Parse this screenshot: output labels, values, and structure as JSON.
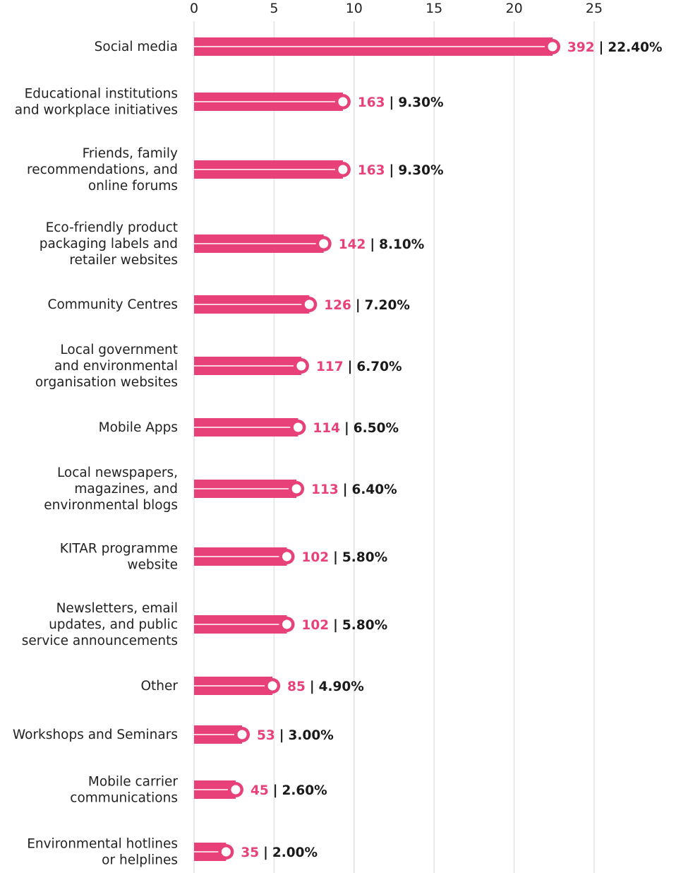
{
  "chart_data": {
    "type": "bar",
    "orientation": "horizontal",
    "xlim": [
      0,
      25
    ],
    "x_ticks": [
      "0",
      "5",
      "10",
      "15",
      "20",
      "25"
    ],
    "grid": true,
    "bar_color": "#e8417a",
    "separator": "|",
    "categories": [
      "Social media",
      "Educational institutions and workplace initiatives",
      "Friends, family recommendations, and online forums",
      "Eco-friendly product packaging labels and retailer websites",
      "Community Centres",
      "Local government and environmental organisation websites",
      "Mobile Apps",
      "Local newspapers, magazines, and environmental blogs",
      "KITAR programme website",
      "Newsletters, email updates, and public service announcements",
      "Other",
      "Workshops and Seminars",
      "Mobile carrier communications",
      "Environmental hotlines or helplines"
    ],
    "category_lines": [
      [
        "Social media"
      ],
      [
        "Educational institutions",
        "and workplace initiatives"
      ],
      [
        "Friends, family",
        "recommendations, and",
        "online forums"
      ],
      [
        "Eco-friendly product",
        "packaging labels and",
        "retailer websites"
      ],
      [
        "Community Centres"
      ],
      [
        "Local government",
        "and environmental",
        "organisation websites"
      ],
      [
        "Mobile Apps"
      ],
      [
        "Local newspapers,",
        "magazines, and",
        "environmental blogs"
      ],
      [
        "KITAR programme",
        "website"
      ],
      [
        "Newsletters, email",
        "updates, and public",
        "service announcements"
      ],
      [
        "Other"
      ],
      [
        "Workshops and Seminars"
      ],
      [
        "Mobile carrier",
        "communications"
      ],
      [
        "Environmental hotlines",
        "or helplines"
      ]
    ],
    "values": [
      22.4,
      9.3,
      9.3,
      8.1,
      7.2,
      6.7,
      6.5,
      6.4,
      5.8,
      5.8,
      4.9,
      3.0,
      2.6,
      2.0
    ],
    "counts": [
      "392",
      "163",
      "163",
      "142",
      "126",
      "117",
      "114",
      "113",
      "102",
      "102",
      "85",
      "53",
      "45",
      "35"
    ],
    "percent_labels": [
      "22.40%",
      "9.30%",
      "9.30%",
      "8.10%",
      "7.20%",
      "6.70%",
      "6.50%",
      "6.40%",
      "5.80%",
      "5.80%",
      "4.90%",
      "3.00%",
      "2.60%",
      "2.00%"
    ]
  }
}
